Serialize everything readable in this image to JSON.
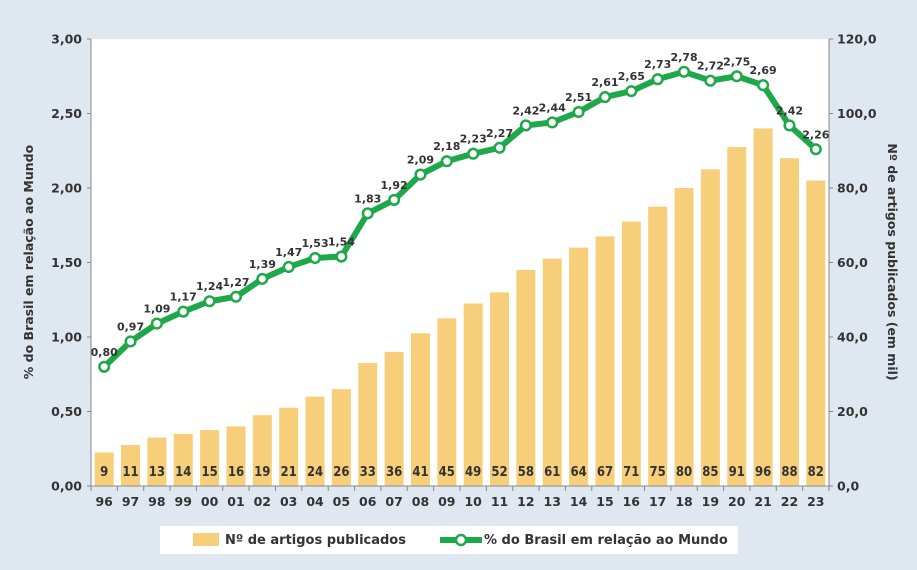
{
  "chart_data": {
    "type": "bar",
    "categories": [
      "96",
      "97",
      "98",
      "99",
      "00",
      "01",
      "02",
      "03",
      "04",
      "05",
      "06",
      "07",
      "08",
      "09",
      "10",
      "11",
      "12",
      "13",
      "14",
      "15",
      "16",
      "17",
      "18",
      "19",
      "20",
      "21",
      "22",
      "23"
    ],
    "series": [
      {
        "name": "Nº de artigos publicados",
        "type": "bar",
        "axis": "right",
        "values": [
          9,
          11,
          13,
          14,
          15,
          16,
          19,
          21,
          24,
          26,
          33,
          36,
          41,
          45,
          49,
          52,
          58,
          61,
          64,
          67,
          71,
          75,
          80,
          85,
          91,
          96,
          88,
          82
        ],
        "labels": [
          "9",
          "11",
          "13",
          "14",
          "15",
          "16",
          "19",
          "21",
          "24",
          "26",
          "33",
          "36",
          "41",
          "45",
          "49",
          "52",
          "58",
          "61",
          "64",
          "67",
          "71",
          "75",
          "80",
          "85",
          "91",
          "96",
          "88",
          "82"
        ],
        "color": "#f7cf7a"
      },
      {
        "name": "% do Brasil em relação ao Mundo",
        "type": "line",
        "axis": "left",
        "values": [
          0.8,
          0.97,
          1.09,
          1.17,
          1.24,
          1.27,
          1.39,
          1.47,
          1.53,
          1.54,
          1.83,
          1.92,
          2.09,
          2.18,
          2.23,
          2.27,
          2.42,
          2.44,
          2.51,
          2.61,
          2.65,
          2.73,
          2.78,
          2.72,
          2.75,
          2.69,
          2.42,
          2.26
        ],
        "labels": [
          "0,80",
          "0,97",
          "1,09",
          "1,17",
          "1,24",
          "1,27",
          "1,39",
          "1,47",
          "1,53",
          "1,54",
          "1,83",
          "1,92",
          "2,09",
          "2,18",
          "2,23",
          "2,27",
          "2,42",
          "2,44",
          "2,51",
          "2,61",
          "2,65",
          "2,73",
          "2,78",
          "2,72",
          "2,75",
          "2,69",
          "2,42",
          "2,26"
        ],
        "color": "#1ea84a"
      }
    ],
    "y_left": {
      "label": "% do Brasil em relação ao Mundo",
      "range": [
        0,
        3
      ],
      "ticks": [
        0,
        0.5,
        1,
        1.5,
        2,
        2.5,
        3
      ],
      "tick_labels": [
        "0,00",
        "0,50",
        "1,00",
        "1,50",
        "2,00",
        "2,50",
        "3,00"
      ]
    },
    "y_right": {
      "label": "Nº de artigos publicados (em mil)",
      "range": [
        0,
        120
      ],
      "ticks": [
        0,
        20,
        40,
        60,
        80,
        100,
        120
      ],
      "tick_labels": [
        "0,0",
        "20,0",
        "40,0",
        "60,0",
        "80,0",
        "100,0",
        "120,0"
      ]
    },
    "grid": false,
    "legend_position": "bottom"
  }
}
